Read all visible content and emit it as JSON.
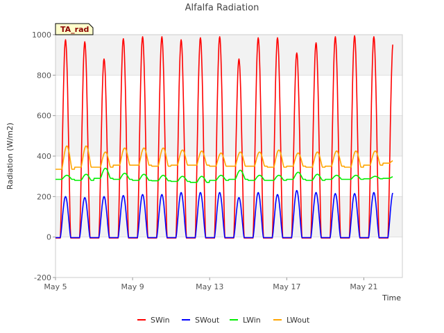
{
  "chart_data": {
    "type": "line",
    "title": "Alfalfa Radiation",
    "xlabel": "Time",
    "ylabel": "Radiation (W/m2)",
    "badge": "TA_rad",
    "ylim": [
      -200,
      1000
    ],
    "xlim_days": [
      5.0,
      23.0
    ],
    "y_ticks": [
      -200,
      0,
      200,
      400,
      600,
      800,
      1000
    ],
    "x_ticks": [
      {
        "day": 5,
        "label": "May 5"
      },
      {
        "day": 9,
        "label": "May 9"
      },
      {
        "day": 13,
        "label": "May 13"
      },
      {
        "day": 17,
        "label": "May 17"
      },
      {
        "day": 21,
        "label": "May 21"
      }
    ],
    "grid": true,
    "legend_position": "bottom-center",
    "days": [
      "May 5",
      "May 6",
      "May 7",
      "May 8",
      "May 9",
      "May 10",
      "May 11",
      "May 12",
      "May 13",
      "May 14",
      "May 15",
      "May 16",
      "May 17",
      "May 18",
      "May 19",
      "May 20",
      "May 21",
      "May 22"
    ],
    "series": [
      {
        "name": "SWin",
        "color": "#ff0000",
        "baseline": -5,
        "daily_peak": [
          975,
          965,
          880,
          980,
          990,
          990,
          975,
          985,
          990,
          880,
          985,
          985,
          910,
          960,
          990,
          995,
          990,
          960
        ]
      },
      {
        "name": "SWout",
        "color": "#0000ff",
        "baseline": -3,
        "daily_peak": [
          200,
          195,
          200,
          205,
          210,
          210,
          220,
          220,
          220,
          195,
          220,
          210,
          230,
          220,
          215,
          215,
          220,
          220
        ]
      },
      {
        "name": "LWin",
        "color": "#00ee00",
        "daily_night": [
          285,
          280,
          290,
          285,
          280,
          278,
          275,
          270,
          280,
          285,
          280,
          280,
          285,
          280,
          285,
          285,
          288,
          290
        ],
        "daily_day": [
          305,
          310,
          340,
          315,
          310,
          305,
          300,
          300,
          305,
          330,
          305,
          305,
          320,
          310,
          305,
          305,
          300,
          300
        ]
      },
      {
        "name": "LWout",
        "color": "#ffa500",
        "daily_night": [
          335,
          345,
          345,
          355,
          355,
          350,
          355,
          355,
          350,
          350,
          350,
          345,
          350,
          345,
          350,
          345,
          355,
          365
        ],
        "daily_day": [
          450,
          450,
          420,
          440,
          440,
          440,
          430,
          425,
          415,
          420,
          420,
          430,
          415,
          420,
          425,
          425,
          425,
          380
        ]
      }
    ]
  }
}
